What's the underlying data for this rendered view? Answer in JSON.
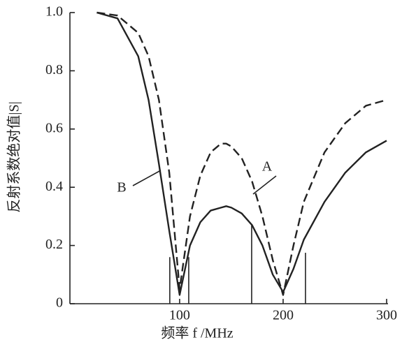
{
  "chart_data": {
    "type": "line",
    "xlabel": "频率 f /MHz",
    "ylabel": "反射系数绝对值|S|",
    "x": [
      20,
      40,
      60,
      70,
      80,
      90,
      100,
      110,
      120,
      130,
      140,
      145,
      150,
      160,
      170,
      180,
      190,
      200,
      210,
      220,
      240,
      260,
      280,
      300
    ],
    "series": [
      {
        "name": "A",
        "color": "#222222",
        "dash": true,
        "values": [
          1.0,
          0.99,
          0.93,
          0.85,
          0.7,
          0.45,
          0.05,
          0.3,
          0.44,
          0.52,
          0.55,
          0.55,
          0.54,
          0.5,
          0.42,
          0.3,
          0.15,
          0.03,
          0.2,
          0.35,
          0.52,
          0.62,
          0.68,
          0.7
        ]
      },
      {
        "name": "B",
        "color": "#222222",
        "dash": false,
        "values": [
          1.0,
          0.98,
          0.85,
          0.7,
          0.48,
          0.25,
          0.03,
          0.2,
          0.28,
          0.32,
          0.33,
          0.335,
          0.33,
          0.31,
          0.27,
          0.2,
          0.1,
          0.04,
          0.12,
          0.22,
          0.35,
          0.45,
          0.52,
          0.56
        ]
      }
    ],
    "vlines": [
      {
        "x": 90.5,
        "y": 0.16
      },
      {
        "x": 108.8,
        "y": 0.16
      },
      {
        "x": 169.6,
        "y": 0.27
      },
      {
        "x": 221.6,
        "y": 0.175
      }
    ],
    "xlim": [
      -6,
      300
    ],
    "xticks": [
      100,
      200,
      300
    ],
    "ylim": [
      0,
      1.0
    ],
    "yticks": [
      0,
      0.2,
      0.4,
      0.6,
      0.8,
      {
        "value": 1.0,
        "label": "1.0"
      }
    ],
    "grid": false
  }
}
